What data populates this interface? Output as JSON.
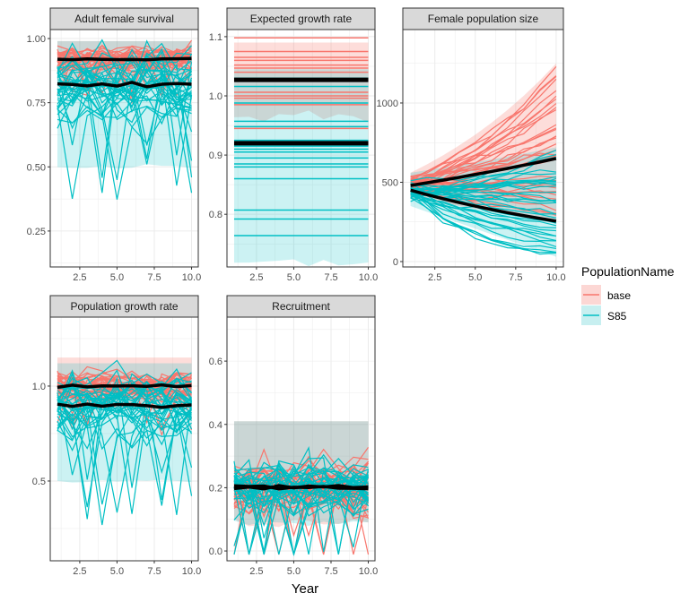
{
  "chart_data": [
    {
      "type": "line",
      "title": "Adult female survival",
      "xlim": [
        0.52,
        10.45
      ],
      "ylim": [
        0.11,
        1.035
      ],
      "xticks": [
        "2.5",
        "5.0",
        "7.5",
        "10.0"
      ],
      "yticks": [
        "0.25",
        "0.50",
        "0.75",
        "1.00"
      ],
      "series": [
        {
          "name": "base",
          "mean": 0.92,
          "ribbon": [
            0.82,
            0.99
          ]
        },
        {
          "name": "S85",
          "mean": 0.82,
          "ribbon": [
            0.5,
            0.99
          ]
        }
      ]
    },
    {
      "type": "line",
      "title": "Expected growth rate",
      "xlim": [
        0.52,
        10.45
      ],
      "ylim": [
        0.711,
        1.112
      ],
      "xticks": [
        "2.5",
        "5.0",
        "7.5",
        "10.0"
      ],
      "yticks": [
        "0.8",
        "0.9",
        "1.0",
        "1.1"
      ],
      "series": [
        {
          "name": "base",
          "mean": 1.027,
          "ribbon": [
            0.96,
            1.09
          ],
          "levels": [
            1.098,
            1.075,
            1.065,
            1.06,
            1.052,
            1.047,
            1.04,
            1.006,
            1.0,
            0.996,
            0.985,
            0.945
          ]
        },
        {
          "name": "S85",
          "mean": 0.92,
          "ribbon": [
            0.72,
            1.045
          ],
          "levels": [
            1.03,
            1.016,
            0.988,
            0.957,
            0.948,
            0.925,
            0.915,
            0.91,
            0.905,
            0.895,
            0.885,
            0.88,
            0.86,
            0.807,
            0.792,
            0.764
          ]
        }
      ]
    },
    {
      "type": "line",
      "title": "Female population size",
      "xlim": [
        0.52,
        10.45
      ],
      "ylim": [
        -34,
        1463
      ],
      "xticks": [
        "2.5",
        "5.0",
        "7.5",
        "10.0"
      ],
      "yticks": [
        "0",
        "500",
        "1000"
      ],
      "series": [
        {
          "name": "base",
          "mean_start": 480,
          "mean_end": 650,
          "ribbon_start": [
            400,
            560
          ],
          "ribbon_end": [
            250,
            1250
          ]
        },
        {
          "name": "S85",
          "mean_start": 450,
          "mean_end": 255,
          "ribbon_start": [
            350,
            560
          ],
          "ribbon_end": [
            30,
            720
          ]
        }
      ]
    },
    {
      "type": "line",
      "title": "Population growth rate",
      "xlim": [
        0.52,
        10.45
      ],
      "ylim": [
        0.08,
        1.363
      ],
      "xticks": [
        "2.5",
        "5.0",
        "7.5",
        "10.0"
      ],
      "yticks": [
        "0.5",
        "1.0"
      ],
      "series": [
        {
          "name": "base",
          "mean": 1.0,
          "ribbon": [
            0.88,
            1.15
          ]
        },
        {
          "name": "S85",
          "mean": 0.9,
          "ribbon": [
            0.5,
            1.12
          ]
        }
      ]
    },
    {
      "type": "line",
      "title": "Recruitment",
      "xlim": [
        0.52,
        10.45
      ],
      "ylim": [
        -0.031,
        0.739
      ],
      "xticks": [
        "2.5",
        "5.0",
        "7.5",
        "10.0"
      ],
      "yticks": [
        "0.0",
        "0.2",
        "0.4",
        "0.6"
      ],
      "series": [
        {
          "name": "base",
          "mean": 0.2,
          "ribbon": [
            0.09,
            0.41
          ]
        },
        {
          "name": "S85",
          "mean": 0.2,
          "ribbon": [
            0.09,
            0.41
          ]
        }
      ]
    }
  ],
  "xlabel": "Year",
  "legend": {
    "title": "PopulationName",
    "items": [
      {
        "label": "base",
        "color": "#F8766D",
        "fill": "#FCD7D4"
      },
      {
        "label": "S85",
        "color": "#00BFC4",
        "fill": "#C7EFF0"
      }
    ],
    "placement": "right"
  },
  "colors": {
    "base": "#F8766D",
    "S85": "#00BFC4",
    "mean": "#000000",
    "strip": "#D9D9D9"
  }
}
